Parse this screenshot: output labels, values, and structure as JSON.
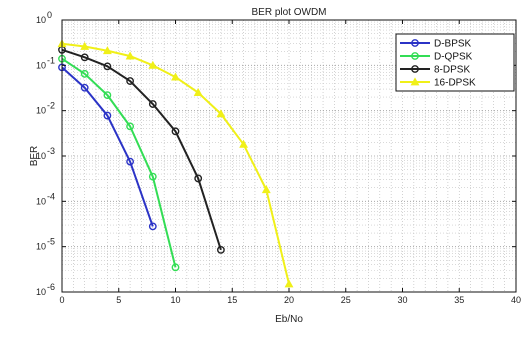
{
  "chart_data": {
    "type": "line",
    "title": "BER plot OWDM",
    "xlabel": "Eb/No",
    "ylabel": "BER",
    "xlim": [
      0,
      40
    ],
    "ylim": [
      1e-06,
      1
    ],
    "yscale": "log",
    "grid": true,
    "legend_position": "top-right",
    "xticks": [
      0,
      5,
      10,
      15,
      20,
      25,
      30,
      35,
      40
    ],
    "yticks": [
      {
        "value": 1,
        "base": "10",
        "exp": "0"
      },
      {
        "value": 0.1,
        "base": "10",
        "exp": "-1"
      },
      {
        "value": 0.01,
        "base": "10",
        "exp": "-2"
      },
      {
        "value": 0.001,
        "base": "10",
        "exp": "-3"
      },
      {
        "value": 0.0001,
        "base": "10",
        "exp": "-4"
      },
      {
        "value": 1e-05,
        "base": "10",
        "exp": "-5"
      },
      {
        "value": 1e-06,
        "base": "10",
        "exp": "-6"
      }
    ],
    "series": [
      {
        "name": "D-BPSK",
        "color": "#2b33c6",
        "marker": "circle",
        "x": [
          0,
          2,
          4,
          6,
          8
        ],
        "y": [
          0.09,
          0.032,
          0.0078,
          0.00075,
          2.8e-05
        ]
      },
      {
        "name": "D-QPSK",
        "color": "#33dd55",
        "marker": "circle",
        "x": [
          0,
          2,
          4,
          6,
          8,
          10
        ],
        "y": [
          0.14,
          0.065,
          0.022,
          0.0045,
          0.00035,
          3.5e-06
        ]
      },
      {
        "name": "8-DPSK",
        "color": "#222222",
        "marker": "circle",
        "x": [
          0,
          2,
          4,
          6,
          8,
          10,
          12,
          14
        ],
        "y": [
          0.22,
          0.15,
          0.095,
          0.045,
          0.014,
          0.0035,
          0.00032,
          8.5e-06
        ]
      },
      {
        "name": "16-DPSK",
        "color": "#f0f018",
        "marker": "triangle",
        "x": [
          0,
          2,
          4,
          6,
          8,
          10,
          12,
          14,
          16,
          18,
          20
        ],
        "y": [
          0.3,
          0.26,
          0.21,
          0.16,
          0.1,
          0.055,
          0.025,
          0.0085,
          0.0018,
          0.00018,
          1.5e-06
        ]
      }
    ]
  }
}
